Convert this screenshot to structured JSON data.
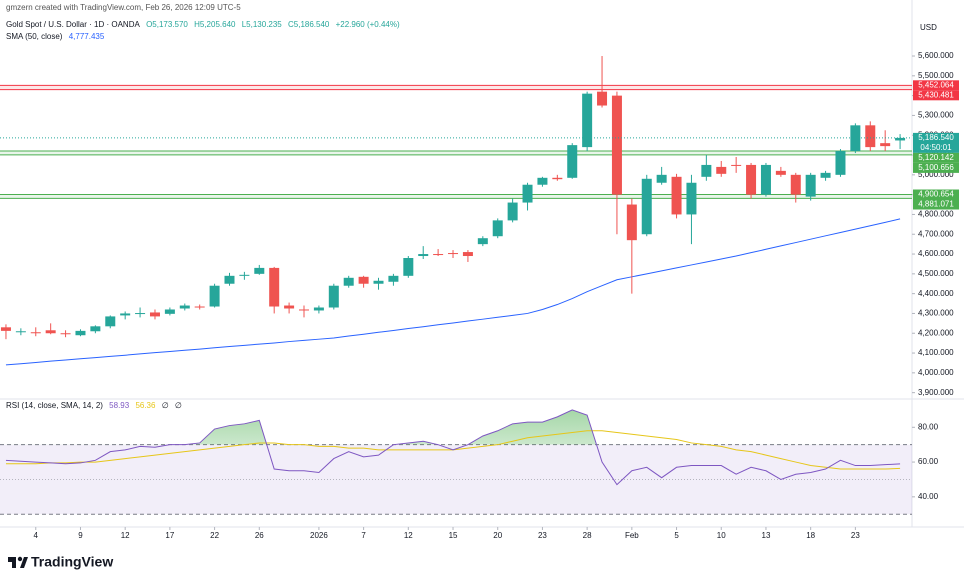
{
  "header": {
    "attribution": "gmzern created with TradingView.com, Feb 26, 2026 12:09 UTC-5",
    "currency": "USD",
    "brand": "TradingView"
  },
  "chart_data": {
    "type": "candlestick",
    "title": "Gold Spot / U.S. Dollar · 1D · OANDA",
    "ohlc_readout": [
      "O5,173.570",
      "H5,205.640",
      "L5,130.235",
      "C5,186.540",
      "+22.960 (+0.44%)"
    ],
    "open": [
      4230,
      4205,
      4205,
      4215,
      4200,
      4190,
      4210,
      4235,
      4290,
      4300,
      4305,
      4298,
      4325,
      4335,
      4335,
      4450,
      4490,
      4500,
      4530,
      4340,
      4320,
      4315,
      4330,
      4440,
      4485,
      4450,
      4460,
      4490,
      4590,
      4600,
      4605,
      4610,
      4650,
      4690,
      4770,
      4860,
      4950,
      4985,
      4985,
      5140,
      5420,
      5400,
      4850,
      4700,
      4960,
      4990,
      4800,
      4990,
      5040,
      5050,
      5050,
      4900,
      5020,
      5000,
      4890,
      4985,
      5000,
      5120,
      5250,
      5160,
      5173.57
    ],
    "high": [
      4245,
      4225,
      4230,
      4250,
      4215,
      4220,
      4240,
      4290,
      4310,
      4330,
      4320,
      4330,
      4350,
      4345,
      4450,
      4505,
      4510,
      4545,
      4535,
      4355,
      4340,
      4340,
      4450,
      4490,
      4490,
      4480,
      4500,
      4590,
      4640,
      4625,
      4620,
      4620,
      4690,
      4780,
      4880,
      4960,
      4990,
      5000,
      5160,
      5420,
      5600,
      5420,
      4880,
      5000,
      5040,
      5005,
      5000,
      5100,
      5070,
      5090,
      5060,
      5060,
      5040,
      5010,
      5010,
      5020,
      5130,
      5260,
      5270,
      5225,
      5205.64
    ],
    "low": [
      4170,
      4190,
      4185,
      4195,
      4180,
      4185,
      4200,
      4225,
      4270,
      4280,
      4270,
      4290,
      4315,
      4320,
      4330,
      4440,
      4470,
      4495,
      4300,
      4300,
      4280,
      4300,
      4320,
      4430,
      4430,
      4420,
      4440,
      4480,
      4575,
      4590,
      4580,
      4560,
      4640,
      4680,
      4760,
      4820,
      4940,
      4970,
      4980,
      5120,
      5340,
      4700,
      4400,
      4690,
      4950,
      4780,
      4650,
      4970,
      4990,
      5010,
      4880,
      4890,
      4990,
      4860,
      4870,
      4970,
      4990,
      5110,
      5120,
      5120,
      5130.235
    ],
    "close": [
      4212,
      4210,
      4200,
      4200,
      4195,
      4212,
      4235,
      4285,
      4300,
      4302,
      4285,
      4320,
      4340,
      4332,
      4440,
      4490,
      4495,
      4530,
      4335,
      4325,
      4315,
      4330,
      4440,
      4480,
      4450,
      4465,
      4490,
      4580,
      4600,
      4595,
      4600,
      4590,
      4680,
      4770,
      4860,
      4950,
      4985,
      4978,
      5150,
      5410,
      5350,
      4900,
      4670,
      4980,
      5000,
      4800,
      4960,
      5050,
      5005,
      5045,
      4900,
      5050,
      5000,
      4900,
      5000,
      5010,
      5120,
      5250,
      5140,
      5145,
      5186.54
    ],
    "up_color": "#26a69a",
    "down_color": "#ef5350",
    "ylim": [
      3873,
      5792
    ],
    "yticks": [
      {
        "value": 5600,
        "label": "5,600.000"
      },
      {
        "value": 5500,
        "label": "5,500.000"
      },
      {
        "value": 5400,
        "label": "5,400.000"
      },
      {
        "value": 5300,
        "label": "5,300.000"
      },
      {
        "value": 5200,
        "label": "5,200.000"
      },
      {
        "value": 5100,
        "label": "5,100.000"
      },
      {
        "value": 5000,
        "label": "5,000.000"
      },
      {
        "value": 4900,
        "label": "4,900.000"
      },
      {
        "value": 4800,
        "label": "4,800.000"
      },
      {
        "value": 4700,
        "label": "4,700.000"
      },
      {
        "value": 4600,
        "label": "4,600.000"
      },
      {
        "value": 4500,
        "label": "4,500.000"
      },
      {
        "value": 4400,
        "label": "4,400.000"
      },
      {
        "value": 4300,
        "label": "4,300.000"
      },
      {
        "value": 4200,
        "label": "4,200.000"
      },
      {
        "value": 4100,
        "label": "4,100.000"
      },
      {
        "value": 4000,
        "label": "4,000.000"
      },
      {
        "value": 3900,
        "label": "3,900.000"
      }
    ],
    "xlim": [
      -0.4,
      60.8
    ],
    "xticks": [
      {
        "value": 2,
        "label": "4"
      },
      {
        "value": 5,
        "label": "9"
      },
      {
        "value": 8,
        "label": "12"
      },
      {
        "value": 11,
        "label": "17"
      },
      {
        "value": 14,
        "label": "22"
      },
      {
        "value": 17,
        "label": "26"
      },
      {
        "value": 21,
        "label": "2026"
      },
      {
        "value": 24,
        "label": "7"
      },
      {
        "value": 27,
        "label": "12"
      },
      {
        "value": 30,
        "label": "15"
      },
      {
        "value": 33,
        "label": "20"
      },
      {
        "value": 36,
        "label": "23"
      },
      {
        "value": 39,
        "label": "28"
      },
      {
        "value": 42,
        "label": "Feb"
      },
      {
        "value": 45,
        "label": "5"
      },
      {
        "value": 48,
        "label": "10"
      },
      {
        "value": 51,
        "label": "13"
      },
      {
        "value": 54,
        "label": "18"
      },
      {
        "value": 57,
        "label": "23"
      }
    ],
    "overlays": [
      {
        "name": "SMA (50, close)",
        "value_label": "4,777.435",
        "color": "#2962ff",
        "values": [
          4040,
          4046,
          4052,
          4059,
          4065,
          4071,
          4077,
          4083,
          4089,
          4096,
          4102,
          4108,
          4114,
          4120,
          4127,
          4133,
          4139,
          4145,
          4151,
          4158,
          4164,
          4170,
          4176,
          4186,
          4195,
          4205,
          4214,
          4224,
          4233,
          4243,
          4252,
          4262,
          4271,
          4281,
          4290,
          4300,
          4320,
          4345,
          4375,
          4410,
          4440,
          4470,
          4485,
          4500,
          4515,
          4530,
          4545,
          4560,
          4575,
          4590,
          4607,
          4624,
          4641,
          4658,
          4675,
          4692,
          4709,
          4726,
          4743,
          4760,
          4777.435
        ]
      }
    ],
    "levels": [
      {
        "value": 5452.064,
        "label": "5,452.064",
        "color": "#f23645"
      },
      {
        "value": 5430.481,
        "label": "5,430.481",
        "color": "#f23645"
      },
      {
        "value": 5120.142,
        "label": "5,120.142",
        "color": "#4caf50"
      },
      {
        "value": 5100.656,
        "label": "5,100.656",
        "color": "#4caf50"
      },
      {
        "value": 4900.654,
        "label": "4,900.654",
        "color": "#4caf50"
      },
      {
        "value": 4881.071,
        "label": "4,881.071",
        "color": "#4caf50"
      }
    ],
    "last_price": {
      "value": 5186.54,
      "label": "5,186.540",
      "countdown": "04:50:01",
      "color": "#26a69a"
    },
    "rsi": {
      "name": "RSI (14, close, SMA, 14, 2)",
      "color": "#7e57c2",
      "value_label": "58.93",
      "ma_color": "#e6c619",
      "ma_value_label": "56.36",
      "na_labels": [
        "∅",
        "∅"
      ],
      "values": [
        61,
        60.5,
        60,
        59.5,
        59,
        59.5,
        61,
        66,
        67,
        69,
        68.5,
        70,
        70,
        71,
        79,
        81,
        82,
        84,
        56,
        55,
        55,
        54,
        62,
        66,
        63,
        64,
        70,
        71,
        72,
        70,
        67,
        70,
        75,
        78,
        82,
        83,
        83,
        86,
        90,
        87,
        60,
        47,
        55,
        57,
        51,
        57,
        58,
        58,
        58,
        53,
        57,
        55,
        50,
        53,
        54,
        56,
        61,
        58,
        58,
        58.5,
        58.93
      ],
      "ma_values": [
        59,
        59,
        59,
        59.5,
        59.5,
        60,
        60,
        61,
        62,
        63,
        64,
        65,
        66,
        67,
        68,
        69,
        70,
        71,
        71,
        70,
        70,
        69,
        69,
        68,
        68,
        67,
        67,
        67,
        67,
        67,
        67,
        68,
        69,
        70,
        72,
        74,
        75,
        76,
        77,
        78,
        78,
        77,
        76,
        75,
        74,
        73,
        71,
        70,
        69,
        67,
        66,
        64,
        62,
        60,
        58,
        57,
        56,
        56,
        56,
        56,
        56.36
      ],
      "ylim": [
        23.8,
        95.7
      ],
      "yticks": [
        {
          "value": 80,
          "label": "80.00"
        },
        {
          "value": 60,
          "label": "60.00"
        },
        {
          "value": 40,
          "label": "40.00"
        }
      ],
      "bands": [
        70,
        30
      ],
      "midline": 50
    }
  }
}
